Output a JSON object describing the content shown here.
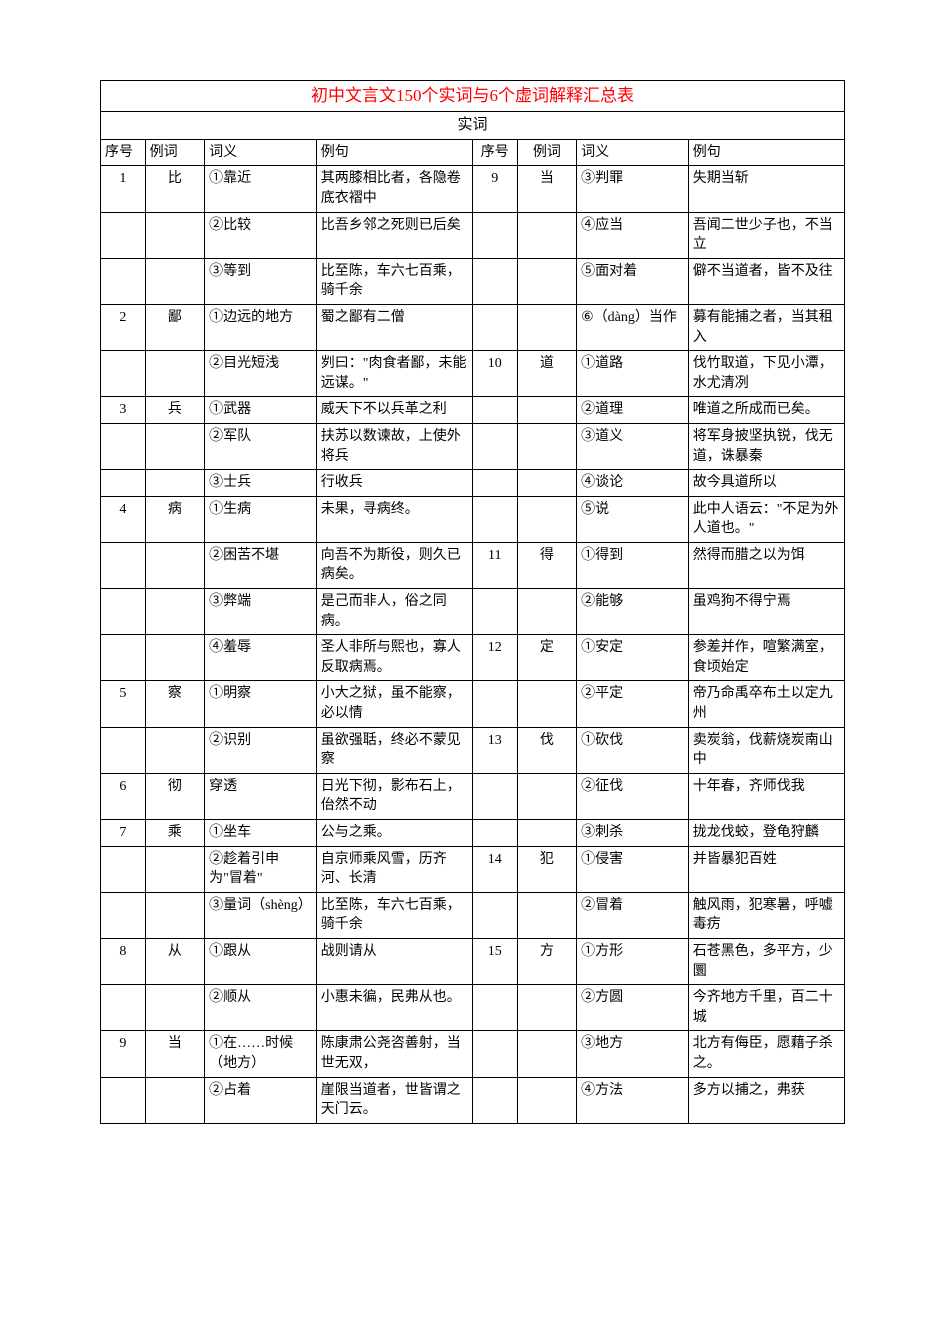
{
  "title": "初中文言文150个实词与6个虚词解释汇总表",
  "subtitle": "实词",
  "headers": {
    "num": "序号",
    "word": "例词",
    "meaning": "词义",
    "example": "例句"
  },
  "colors": {
    "title_color": "#ff0000",
    "border_color": "#000000",
    "text_color": "#000000",
    "background": "#ffffff"
  },
  "rows": [
    {
      "l": [
        "1",
        "比",
        "①靠近",
        "其两膝相比者，各隐卷底衣褶中"
      ],
      "r": [
        "9",
        "当",
        "③判罪",
        "失期当斩"
      ]
    },
    {
      "l": [
        "",
        "",
        "②比较",
        "比吾乡邻之死则已后矣"
      ],
      "r": [
        "",
        "",
        "④应当",
        "吾闻二世少子也，不当立"
      ]
    },
    {
      "l": [
        "",
        "",
        "③等到",
        "比至陈，车六七百乘，骑千余"
      ],
      "r": [
        "",
        "",
        "⑤面对着",
        "僻不当道者，皆不及往"
      ]
    },
    {
      "l": [
        "2",
        "鄙",
        "①边远的地方",
        "蜀之鄙有二僧"
      ],
      "r": [
        "",
        "",
        "⑥（dàng）当作",
        "募有能捕之者，当其租入"
      ]
    },
    {
      "l": [
        "",
        "",
        "②目光短浅",
        "刿曰：\"肉食者鄙，未能远谋。\""
      ],
      "r": [
        "10",
        "道",
        "①道路",
        "伐竹取道，下见小潭，水尤清冽"
      ]
    },
    {
      "l": [
        "3",
        "兵",
        "①武器",
        "威天下不以兵革之利"
      ],
      "r": [
        "",
        "",
        "②道理",
        "唯道之所成而已矣。"
      ]
    },
    {
      "l": [
        "",
        "",
        "②军队",
        "扶苏以数谏故，上使外将兵"
      ],
      "r": [
        "",
        "",
        "③道义",
        "将军身披坚执锐，伐无道，诛暴秦"
      ]
    },
    {
      "l": [
        "",
        "",
        "③士兵",
        "行收兵"
      ],
      "r": [
        "",
        "",
        "④谈论",
        "故今具道所以"
      ]
    },
    {
      "l": [
        "4",
        "病",
        "①生病",
        "未果，寻病终。"
      ],
      "r": [
        "",
        "",
        "⑤说",
        "此中人语云：\"不足为外人道也。\""
      ]
    },
    {
      "l": [
        "",
        "",
        "②困苦不堪",
        "向吾不为斯役，则久已病矣。"
      ],
      "r": [
        "11",
        "得",
        "①得到",
        "然得而腊之以为饵"
      ]
    },
    {
      "l": [
        "",
        "",
        "③弊端",
        "是己而非人，俗之同病。"
      ],
      "r": [
        "",
        "",
        "②能够",
        "虽鸡狗不得宁焉"
      ]
    },
    {
      "l": [
        "",
        "",
        "④羞辱",
        "圣人非所与熙也，寡人反取病焉。"
      ],
      "r": [
        "12",
        "定",
        "①安定",
        "参差并作，喧繁满室，食顷始定"
      ]
    },
    {
      "l": [
        "5",
        "察",
        "①明察",
        "小大之狱，虽不能察，必以情"
      ],
      "r": [
        "",
        "",
        "②平定",
        "帝乃命禹卒布土以定九州"
      ]
    },
    {
      "l": [
        "",
        "",
        "②识别",
        "虽欲强聒，终必不蒙见察"
      ],
      "r": [
        "13",
        "伐",
        "①砍伐",
        "卖炭翁，伐薪烧炭南山中"
      ]
    },
    {
      "l": [
        "6",
        "彻",
        "穿透",
        "日光下彻，影布石上，佁然不动"
      ],
      "r": [
        "",
        "",
        "②征伐",
        "十年春，齐师伐我"
      ]
    },
    {
      "l": [
        "7",
        "乘",
        "①坐车",
        "公与之乘。"
      ],
      "r": [
        "",
        "",
        "③刺杀",
        "拢龙伐蛟，登龟狩麟"
      ]
    },
    {
      "l": [
        "",
        "",
        "②趁着引申为\"冒着\"",
        "自京师乘风雪，历齐河、长清"
      ],
      "r": [
        "14",
        "犯",
        "①侵害",
        "并皆暴犯百姓"
      ]
    },
    {
      "l": [
        "",
        "",
        "③量词（shèng）",
        "比至陈，车六七百乘，骑千余"
      ],
      "r": [
        "",
        "",
        "②冒着",
        "触风雨，犯寒暑，呼嘘毒疠"
      ]
    },
    {
      "l": [
        "8",
        "从",
        "①跟从",
        "战则请从"
      ],
      "r": [
        "15",
        "方",
        "①方形",
        "石苍黑色，多平方，少圜"
      ]
    },
    {
      "l": [
        "",
        "",
        "②顺从",
        "小惠未徧，民弗从也。"
      ],
      "r": [
        "",
        "",
        "②方圆",
        "今齐地方千里，百二十城"
      ]
    },
    {
      "l": [
        "9",
        "当",
        "①在……时候（地方）",
        "陈康肃公尧咨善射，当世无双，"
      ],
      "r": [
        "",
        "",
        "③地方",
        "北方有侮臣，愿藉子杀之。"
      ]
    },
    {
      "l": [
        "",
        "",
        "②占着",
        "崖限当道者，世皆谓之天门云。"
      ],
      "r": [
        "",
        "",
        "④方法",
        "多方以捕之，弗获"
      ]
    }
  ]
}
